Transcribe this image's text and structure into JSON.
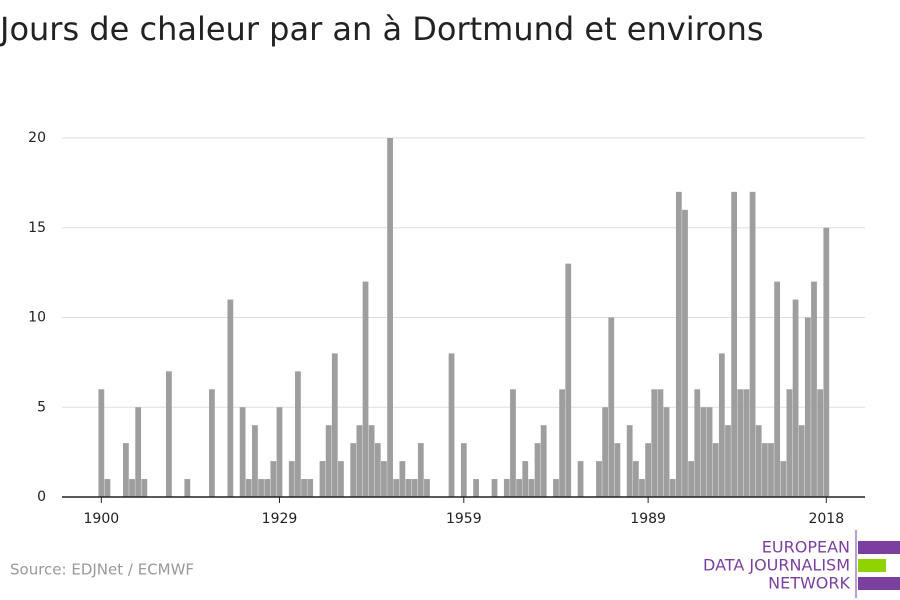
{
  "chart_data": {
    "type": "bar",
    "title": "Jours de chaleur par an à Dortmund et environs",
    "source": "Source: EDJNet / ECMWF",
    "logo": [
      "EUROPEAN",
      "DATA JOURNALISM",
      "NETWORK"
    ],
    "color": "#9e9e9e",
    "grid": true,
    "x": [
      1900,
      1901,
      1902,
      1903,
      1904,
      1905,
      1906,
      1907,
      1908,
      1909,
      1910,
      1911,
      1912,
      1913,
      1914,
      1915,
      1916,
      1917,
      1918,
      1919,
      1920,
      1921,
      1922,
      1923,
      1924,
      1925,
      1926,
      1927,
      1928,
      1929,
      1930,
      1931,
      1932,
      1933,
      1934,
      1935,
      1936,
      1937,
      1938,
      1939,
      1940,
      1941,
      1942,
      1943,
      1944,
      1945,
      1946,
      1947,
      1948,
      1949,
      1950,
      1951,
      1952,
      1953,
      1954,
      1955,
      1956,
      1957,
      1958,
      1959,
      1960,
      1961,
      1962,
      1963,
      1964,
      1965,
      1966,
      1967,
      1968,
      1969,
      1970,
      1971,
      1972,
      1973,
      1974,
      1975,
      1976,
      1977,
      1978,
      1979,
      1980,
      1981,
      1982,
      1983,
      1984,
      1985,
      1986,
      1987,
      1988,
      1989,
      1990,
      1991,
      1992,
      1993,
      1994,
      1995,
      1996,
      1997,
      1998,
      1999,
      2000,
      2001,
      2002,
      2003,
      2004,
      2005,
      2006,
      2007,
      2008,
      2009,
      2010,
      2011,
      2012,
      2013,
      2014,
      2015,
      2016,
      2017,
      2018
    ],
    "values": [
      6,
      1,
      0,
      0,
      3,
      1,
      5,
      1,
      0,
      0,
      0,
      7,
      0,
      0,
      1,
      0,
      0,
      0,
      6,
      0,
      0,
      11,
      0,
      5,
      1,
      4,
      1,
      1,
      2,
      5,
      0,
      2,
      7,
      1,
      1,
      0,
      2,
      4,
      8,
      2,
      0,
      3,
      4,
      12,
      4,
      3,
      2,
      20,
      1,
      2,
      1,
      1,
      3,
      1,
      0,
      0,
      0,
      8,
      0,
      3,
      0,
      1,
      0,
      0,
      1,
      0,
      1,
      6,
      1,
      2,
      1,
      3,
      4,
      0,
      1,
      6,
      13,
      0,
      2,
      0,
      0,
      2,
      5,
      10,
      3,
      0,
      4,
      2,
      1,
      3,
      6,
      6,
      5,
      1,
      17,
      16,
      2,
      6,
      5,
      5,
      3,
      8,
      4,
      17,
      6,
      6,
      17,
      4,
      3,
      3,
      12,
      2,
      6,
      11,
      4,
      10,
      12,
      6,
      15
    ],
    "xlim": [
      1893.6,
      2024.3
    ],
    "xticks": [
      1900,
      1929,
      1959,
      1989,
      2018
    ],
    "ylim": [
      0,
      20
    ],
    "yticks": [
      0,
      5,
      10,
      15,
      20
    ]
  }
}
